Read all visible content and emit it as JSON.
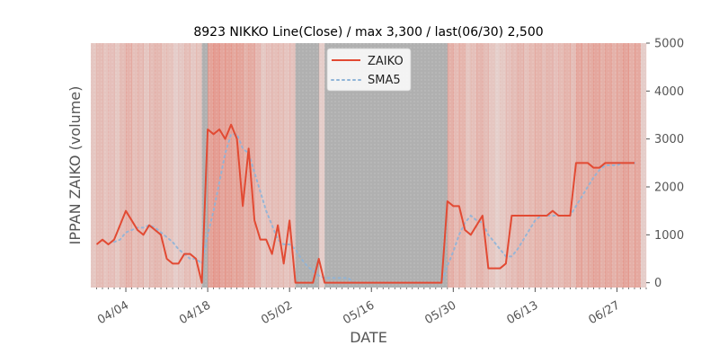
{
  "chart_data": {
    "type": "line",
    "title": "8923 NIKKO Line(Close) / max 3,300 / last(06/30) 2,500",
    "xlabel": "DATE",
    "ylabel": "IPPAN ZAIKO (volume)",
    "ylim": [
      -100,
      5000
    ],
    "yticks": [
      0,
      1000,
      2000,
      3000,
      4000,
      5000
    ],
    "y_axis_side": "right",
    "x_tick_labels": [
      "04/04",
      "04/18",
      "05/02",
      "05/16",
      "05/30",
      "06/13",
      "06/27"
    ],
    "x_ticks": [
      "2025-04-04",
      "2025-04-18",
      "2025-05-02",
      "2025-05-16",
      "2025-05-30",
      "2025-06-13",
      "2025-06-27"
    ],
    "xlim": [
      "2025-03-29",
      "2025-07-02"
    ],
    "legend_placement": "top-center",
    "grid": false,
    "background_shading": "daily vertical bands, light pink to red by intensity; grey bands over zero-volume periods",
    "series": [
      {
        "name": "ZAIKO",
        "color": "#e24a33",
        "style": "solid",
        "points": [
          [
            "2025-03-30",
            800
          ],
          [
            "2025-03-31",
            900
          ],
          [
            "2025-04-01",
            800
          ],
          [
            "2025-04-02",
            900
          ],
          [
            "2025-04-03",
            1200
          ],
          [
            "2025-04-04",
            1500
          ],
          [
            "2025-04-05",
            1300
          ],
          [
            "2025-04-06",
            1100
          ],
          [
            "2025-04-07",
            1000
          ],
          [
            "2025-04-08",
            1200
          ],
          [
            "2025-04-09",
            1100
          ],
          [
            "2025-04-10",
            1000
          ],
          [
            "2025-04-11",
            500
          ],
          [
            "2025-04-12",
            400
          ],
          [
            "2025-04-13",
            400
          ],
          [
            "2025-04-14",
            600
          ],
          [
            "2025-04-15",
            600
          ],
          [
            "2025-04-16",
            500
          ],
          [
            "2025-04-17",
            0
          ],
          [
            "2025-04-18",
            3200
          ],
          [
            "2025-04-19",
            3100
          ],
          [
            "2025-04-20",
            3200
          ],
          [
            "2025-04-21",
            3000
          ],
          [
            "2025-04-22",
            3300
          ],
          [
            "2025-04-23",
            3000
          ],
          [
            "2025-04-24",
            1600
          ],
          [
            "2025-04-25",
            2800
          ],
          [
            "2025-04-26",
            1300
          ],
          [
            "2025-04-27",
            900
          ],
          [
            "2025-04-28",
            900
          ],
          [
            "2025-04-29",
            600
          ],
          [
            "2025-04-30",
            1200
          ],
          [
            "2025-05-01",
            400
          ],
          [
            "2025-05-02",
            1300
          ],
          [
            "2025-05-03",
            0
          ],
          [
            "2025-05-04",
            0
          ],
          [
            "2025-05-05",
            0
          ],
          [
            "2025-05-06",
            0
          ],
          [
            "2025-05-07",
            500
          ],
          [
            "2025-05-08",
            0
          ],
          [
            "2025-05-09",
            0
          ],
          [
            "2025-05-10",
            0
          ],
          [
            "2025-05-11",
            0
          ],
          [
            "2025-05-12",
            0
          ],
          [
            "2025-05-13",
            0
          ],
          [
            "2025-05-14",
            0
          ],
          [
            "2025-05-15",
            0
          ],
          [
            "2025-05-16",
            0
          ],
          [
            "2025-05-17",
            0
          ],
          [
            "2025-05-18",
            0
          ],
          [
            "2025-05-19",
            0
          ],
          [
            "2025-05-20",
            0
          ],
          [
            "2025-05-21",
            0
          ],
          [
            "2025-05-22",
            0
          ],
          [
            "2025-05-23",
            0
          ],
          [
            "2025-05-24",
            0
          ],
          [
            "2025-05-25",
            0
          ],
          [
            "2025-05-26",
            0
          ],
          [
            "2025-05-27",
            0
          ],
          [
            "2025-05-28",
            0
          ],
          [
            "2025-05-29",
            1700
          ],
          [
            "2025-05-30",
            1600
          ],
          [
            "2025-05-31",
            1600
          ],
          [
            "2025-06-01",
            1100
          ],
          [
            "2025-06-02",
            1000
          ],
          [
            "2025-06-03",
            1200
          ],
          [
            "2025-06-04",
            1400
          ],
          [
            "2025-06-05",
            300
          ],
          [
            "2025-06-06",
            300
          ],
          [
            "2025-06-07",
            300
          ],
          [
            "2025-06-08",
            400
          ],
          [
            "2025-06-09",
            1400
          ],
          [
            "2025-06-10",
            1400
          ],
          [
            "2025-06-11",
            1400
          ],
          [
            "2025-06-12",
            1400
          ],
          [
            "2025-06-13",
            1400
          ],
          [
            "2025-06-14",
            1400
          ],
          [
            "2025-06-15",
            1400
          ],
          [
            "2025-06-16",
            1500
          ],
          [
            "2025-06-17",
            1400
          ],
          [
            "2025-06-18",
            1400
          ],
          [
            "2025-06-19",
            1400
          ],
          [
            "2025-06-20",
            2500
          ],
          [
            "2025-06-21",
            2500
          ],
          [
            "2025-06-22",
            2500
          ],
          [
            "2025-06-23",
            2400
          ],
          [
            "2025-06-24",
            2400
          ],
          [
            "2025-06-25",
            2500
          ],
          [
            "2025-06-26",
            2500
          ],
          [
            "2025-06-27",
            2500
          ],
          [
            "2025-06-28",
            2500
          ],
          [
            "2025-06-29",
            2500
          ],
          [
            "2025-06-30",
            2500
          ]
        ]
      },
      {
        "name": "SMA5",
        "color": "#8eb4d8",
        "style": "dotted",
        "points": [
          [
            "2025-04-02",
            850
          ],
          [
            "2025-04-03",
            900
          ],
          [
            "2025-04-04",
            1050
          ],
          [
            "2025-04-05",
            1100
          ],
          [
            "2025-04-06",
            1150
          ],
          [
            "2025-04-07",
            1150
          ],
          [
            "2025-04-08",
            1200
          ],
          [
            "2025-04-09",
            1150
          ],
          [
            "2025-04-10",
            1050
          ],
          [
            "2025-04-11",
            950
          ],
          [
            "2025-04-12",
            850
          ],
          [
            "2025-04-13",
            700
          ],
          [
            "2025-04-14",
            600
          ],
          [
            "2025-04-15",
            500
          ],
          [
            "2025-04-16",
            500
          ],
          [
            "2025-04-17",
            400
          ],
          [
            "2025-04-18",
            1000
          ],
          [
            "2025-04-19",
            1500
          ],
          [
            "2025-04-20",
            2100
          ],
          [
            "2025-04-21",
            2700
          ],
          [
            "2025-04-22",
            3100
          ],
          [
            "2025-04-23",
            3100
          ],
          [
            "2025-04-24",
            2800
          ],
          [
            "2025-04-25",
            2700
          ],
          [
            "2025-04-26",
            2300
          ],
          [
            "2025-04-27",
            1900
          ],
          [
            "2025-04-28",
            1500
          ],
          [
            "2025-04-29",
            1200
          ],
          [
            "2025-04-30",
            900
          ],
          [
            "2025-05-01",
            800
          ],
          [
            "2025-05-02",
            800
          ],
          [
            "2025-05-03",
            700
          ],
          [
            "2025-05-04",
            500
          ],
          [
            "2025-05-05",
            350
          ],
          [
            "2025-05-06",
            250
          ],
          [
            "2025-05-07",
            150
          ],
          [
            "2025-05-08",
            100
          ],
          [
            "2025-05-09",
            100
          ],
          [
            "2025-05-10",
            100
          ],
          [
            "2025-05-11",
            100
          ],
          [
            "2025-05-12",
            100
          ],
          [
            "2025-05-13",
            0
          ],
          [
            "2025-05-14",
            0
          ],
          [
            "2025-05-15",
            0
          ],
          [
            "2025-05-16",
            0
          ],
          [
            "2025-05-17",
            0
          ],
          [
            "2025-05-18",
            0
          ],
          [
            "2025-05-19",
            0
          ],
          [
            "2025-05-20",
            0
          ],
          [
            "2025-05-21",
            0
          ],
          [
            "2025-05-22",
            0
          ],
          [
            "2025-05-23",
            0
          ],
          [
            "2025-05-24",
            0
          ],
          [
            "2025-05-25",
            0
          ],
          [
            "2025-05-26",
            0
          ],
          [
            "2025-05-27",
            0
          ],
          [
            "2025-05-28",
            0
          ],
          [
            "2025-05-29",
            350
          ],
          [
            "2025-05-30",
            650
          ],
          [
            "2025-05-31",
            1000
          ],
          [
            "2025-06-01",
            1250
          ],
          [
            "2025-06-02",
            1400
          ],
          [
            "2025-06-03",
            1300
          ],
          [
            "2025-06-04",
            1250
          ],
          [
            "2025-06-05",
            1000
          ],
          [
            "2025-06-06",
            850
          ],
          [
            "2025-06-07",
            700
          ],
          [
            "2025-06-08",
            550
          ],
          [
            "2025-06-09",
            550
          ],
          [
            "2025-06-10",
            700
          ],
          [
            "2025-06-11",
            900
          ],
          [
            "2025-06-12",
            1100
          ],
          [
            "2025-06-13",
            1300
          ],
          [
            "2025-06-14",
            1400
          ],
          [
            "2025-06-15",
            1400
          ],
          [
            "2025-06-16",
            1400
          ],
          [
            "2025-06-17",
            1400
          ],
          [
            "2025-06-18",
            1400
          ],
          [
            "2025-06-19",
            1400
          ],
          [
            "2025-06-20",
            1600
          ],
          [
            "2025-06-21",
            1800
          ],
          [
            "2025-06-22",
            2000
          ],
          [
            "2025-06-23",
            2200
          ],
          [
            "2025-06-24",
            2350
          ],
          [
            "2025-06-25",
            2450
          ],
          [
            "2025-06-26",
            2450
          ],
          [
            "2025-06-27",
            2450
          ],
          [
            "2025-06-28",
            2500
          ],
          [
            "2025-06-29",
            2500
          ],
          [
            "2025-06-30",
            2500
          ]
        ]
      }
    ],
    "legend": [
      "ZAIKO",
      "SMA5"
    ],
    "colors": {
      "grey_band": "#b0b0b0",
      "axis_text": "#555555",
      "legend_frame": "#cccccc"
    }
  }
}
